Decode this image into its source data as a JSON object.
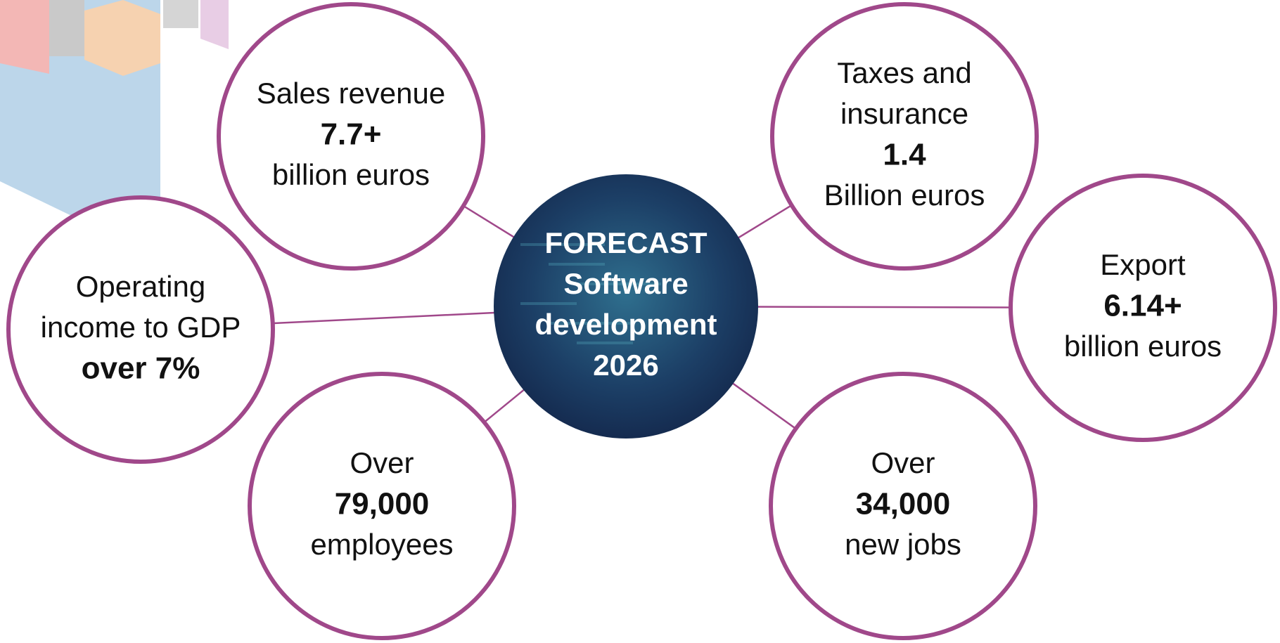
{
  "center": {
    "lines": [
      "FORECAST",
      "Software",
      "development",
      "2026"
    ]
  },
  "nodes": [
    {
      "label": [
        "Sales revenue"
      ],
      "value": "7.7+",
      "unit": "billion euros"
    },
    {
      "label": [
        "Taxes and",
        "insurance"
      ],
      "value": "1.4",
      "unit": "Billion euros"
    },
    {
      "label": [
        "Operating",
        "income to GDP"
      ],
      "value": "over 7%"
    },
    {
      "label": [
        "Export"
      ],
      "value": "6.14+",
      "unit": "billion euros"
    },
    {
      "label": [
        "Over"
      ],
      "value": "79,000",
      "unit": "employees"
    },
    {
      "label": [
        "Over"
      ],
      "value": "34,000",
      "unit": "new jobs"
    }
  ]
}
